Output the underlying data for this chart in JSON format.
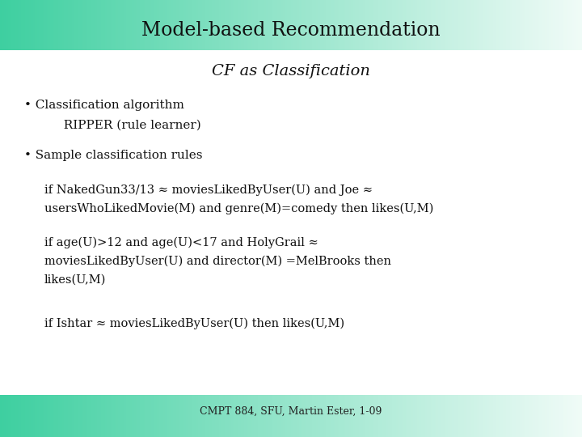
{
  "title": "Model-based Recommendation",
  "subtitle": "CF as Classification",
  "bullet1_line1": "• Classification algorithm",
  "bullet1_line2": "          RIPPER (rule learner)",
  "bullet2": "• Sample classification rules",
  "rule1_line1": "if NakedGun33/13 ≈ moviesLikedByUser(U) and Joe ≈",
  "rule1_line2": "usersWhoLikedMovie(M) and genre(M)=comedy then likes(U,M)",
  "rule2_line1": "if age(U)>12 and age(U)<17 and HolyGrail ≈",
  "rule2_line2": "moviesLikedByUser(U) and director(M) =MelBrooks then",
  "rule2_line3": "likes(U,M)",
  "rule3": "if Ishtar ≈ moviesLikedByUser(U) then likes(U,M)",
  "footer": "CMPT 884, SFU, Martin Ester, 1-09",
  "bg_color": "#ffffff",
  "header_teal": "#3ecfa0",
  "header_white": "#f0fbf7",
  "title_font_size": 17,
  "subtitle_font_size": 14,
  "body_font_size": 11,
  "rule_font_size": 10.5,
  "footer_font_size": 9
}
